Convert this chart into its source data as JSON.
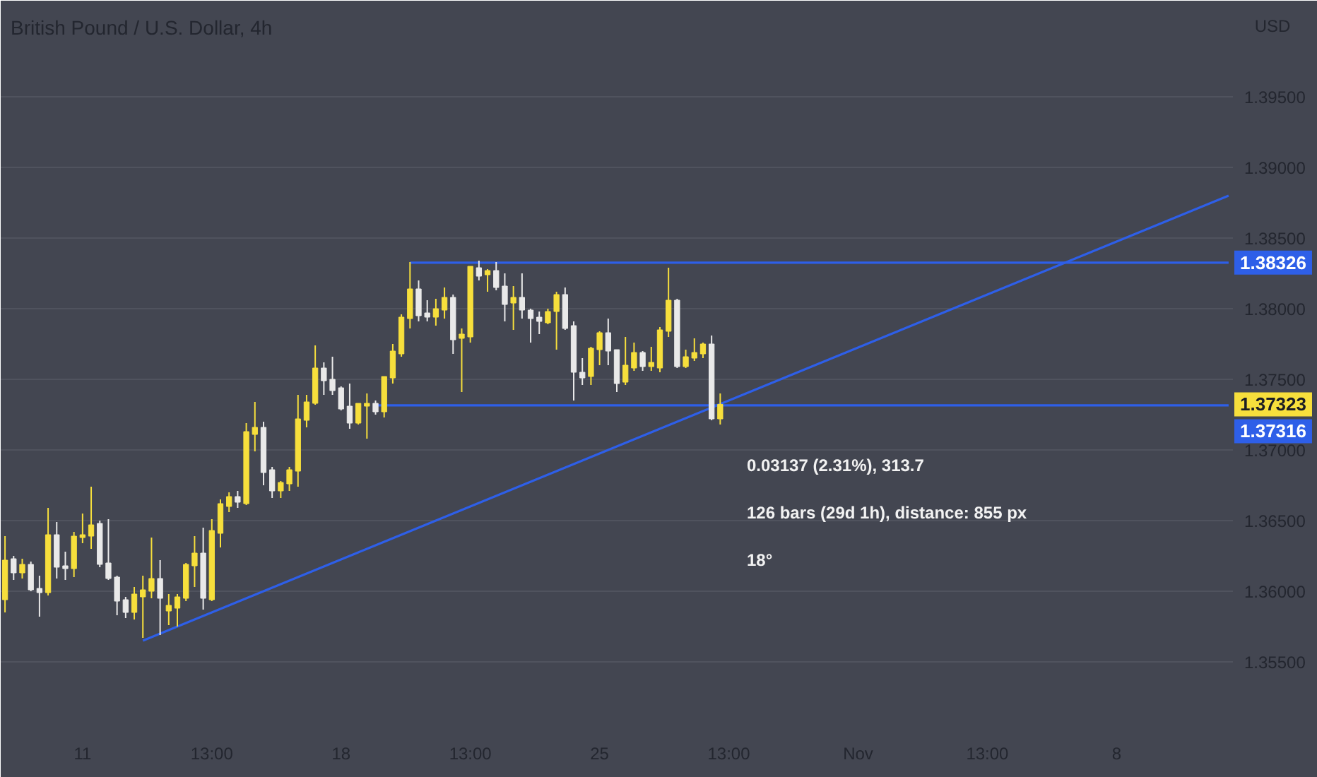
{
  "chart_data": {
    "type": "candlestick",
    "title": "British Pound / U.S. Dollar, 4h",
    "ylabel": "USD",
    "categories": [
      null,
      null,
      null,
      null,
      null,
      null,
      null,
      null,
      null,
      "11",
      null,
      null,
      null,
      null,
      null,
      null,
      null,
      null,
      null,
      null,
      null,
      null,
      null,
      null,
      "13:00",
      null,
      null,
      null,
      null,
      null,
      null,
      null,
      null,
      null,
      null,
      null,
      null,
      null,
      null,
      "18",
      null,
      null,
      null,
      null,
      null,
      null,
      null,
      null,
      null,
      null,
      null,
      null,
      null,
      null,
      "13:00",
      null,
      null,
      null,
      null,
      null,
      null,
      null,
      null,
      null,
      null,
      null,
      null,
      null,
      null,
      "25",
      null,
      null,
      null,
      null,
      null,
      null,
      null,
      null,
      null,
      null,
      null,
      null,
      null,
      null,
      "13:00",
      null,
      null,
      null,
      null,
      null,
      null,
      null,
      null,
      null,
      null,
      null,
      null,
      null,
      null,
      "Nov",
      null,
      null,
      null,
      null,
      null,
      null,
      null,
      null,
      null,
      null,
      null,
      null,
      null,
      null,
      "13:00",
      null,
      null,
      null,
      null,
      null,
      null,
      null,
      null,
      null,
      null,
      null,
      null,
      null,
      null,
      "8",
      null,
      null,
      null,
      null,
      null,
      null,
      null,
      null,
      null,
      null,
      null,
      null,
      null
    ],
    "ohlc": [
      [
        1.3594,
        1.3639,
        1.3585,
        1.3622
      ],
      [
        1.3623,
        1.3625,
        1.3608,
        1.3613
      ],
      [
        1.3613,
        1.3623,
        1.3609,
        1.3619
      ],
      [
        1.3619,
        1.3621,
        1.36,
        1.3601
      ],
      [
        1.3602,
        1.3611,
        1.3582,
        1.3599
      ],
      [
        1.3599,
        1.3659,
        1.3597,
        1.364
      ],
      [
        1.364,
        1.3649,
        1.3609,
        1.3617
      ],
      [
        1.3618,
        1.3628,
        1.3608,
        1.3616
      ],
      [
        1.3616,
        1.3642,
        1.361,
        1.3639
      ],
      [
        1.3638,
        1.3655,
        1.3634,
        1.364
      ],
      [
        1.3639,
        1.3674,
        1.363,
        1.3647
      ],
      [
        1.3648,
        1.365,
        1.3617,
        1.3619
      ],
      [
        1.362,
        1.3651,
        1.3608,
        1.3609
      ],
      [
        1.361,
        1.3611,
        1.3583,
        1.3593
      ],
      [
        1.3594,
        1.3596,
        1.3581,
        1.3585
      ],
      [
        1.3585,
        1.3603,
        1.358,
        1.3598
      ],
      [
        1.3596,
        1.3611,
        1.3567,
        1.3601
      ],
      [
        1.36,
        1.3638,
        1.3595,
        1.3609
      ],
      [
        1.3609,
        1.3622,
        1.3569,
        1.3595
      ],
      [
        1.3586,
        1.3598,
        1.3576,
        1.359
      ],
      [
        1.3588,
        1.3598,
        1.3575,
        1.3596
      ],
      [
        1.3595,
        1.362,
        1.3593,
        1.3619
      ],
      [
        1.3618,
        1.3639,
        1.3603,
        1.3627
      ],
      [
        1.3627,
        1.3645,
        1.3587,
        1.3595
      ],
      [
        1.3594,
        1.3651,
        1.3593,
        1.3643
      ],
      [
        1.3641,
        1.3665,
        1.3631,
        1.3662
      ],
      [
        1.366,
        1.367,
        1.3656,
        1.3667
      ],
      [
        1.3667,
        1.3671,
        1.3659,
        1.3663
      ],
      [
        1.3662,
        1.3719,
        1.3661,
        1.3713
      ],
      [
        1.3711,
        1.3734,
        1.3699,
        1.3716
      ],
      [
        1.3716,
        1.372,
        1.3675,
        1.3684
      ],
      [
        1.3686,
        1.3688,
        1.3666,
        1.3671
      ],
      [
        1.3671,
        1.3678,
        1.3666,
        1.3677
      ],
      [
        1.3676,
        1.3688,
        1.3671,
        1.3686
      ],
      [
        1.3685,
        1.3739,
        1.3674,
        1.3722
      ],
      [
        1.3721,
        1.3739,
        1.3716,
        1.3734
      ],
      [
        1.3733,
        1.3774,
        1.3732,
        1.3758
      ],
      [
        1.3758,
        1.3762,
        1.3739,
        1.3749
      ],
      [
        1.375,
        1.3766,
        1.3739,
        1.3742
      ],
      [
        1.3744,
        1.3745,
        1.3728,
        1.3729
      ],
      [
        1.3731,
        1.3747,
        1.3715,
        1.3719
      ],
      [
        1.3719,
        1.3733,
        1.3718,
        1.3733
      ],
      [
        1.3731,
        1.374,
        1.3708,
        1.3733
      ],
      [
        1.3733,
        1.3735,
        1.3725,
        1.3727
      ],
      [
        1.3727,
        1.3752,
        1.3723,
        1.3752
      ],
      [
        1.3751,
        1.3775,
        1.3747,
        1.377
      ],
      [
        1.3768,
        1.3796,
        1.3766,
        1.3794
      ],
      [
        1.3793,
        1.3833,
        1.3786,
        1.3814
      ],
      [
        1.3814,
        1.382,
        1.3791,
        1.3795
      ],
      [
        1.3797,
        1.3806,
        1.3791,
        1.3794
      ],
      [
        1.3794,
        1.3807,
        1.3788,
        1.38
      ],
      [
        1.3799,
        1.3815,
        1.3793,
        1.3808
      ],
      [
        1.3808,
        1.381,
        1.3768,
        1.3778
      ],
      [
        1.3779,
        1.3786,
        1.3741,
        1.3782
      ],
      [
        1.378,
        1.383,
        1.3776,
        1.383
      ],
      [
        1.3829,
        1.3834,
        1.382,
        1.3823
      ],
      [
        1.3824,
        1.3828,
        1.3812,
        1.3827
      ],
      [
        1.3827,
        1.3833,
        1.3813,
        1.3815
      ],
      [
        1.3816,
        1.3825,
        1.3791,
        1.3803
      ],
      [
        1.3804,
        1.3816,
        1.3785,
        1.3808
      ],
      [
        1.3808,
        1.3825,
        1.3793,
        1.3799
      ],
      [
        1.3799,
        1.38,
        1.3776,
        1.3793
      ],
      [
        1.3794,
        1.3798,
        1.3782,
        1.3791
      ],
      [
        1.379,
        1.38,
        1.3789,
        1.3798
      ],
      [
        1.3798,
        1.3812,
        1.3771,
        1.381
      ],
      [
        1.381,
        1.3815,
        1.3785,
        1.3786
      ],
      [
        1.3788,
        1.3791,
        1.3735,
        1.3755
      ],
      [
        1.3755,
        1.3765,
        1.3746,
        1.3751
      ],
      [
        1.3752,
        1.3773,
        1.3746,
        1.3772
      ],
      [
        1.3771,
        1.3784,
        1.376,
        1.3783
      ],
      [
        1.3783,
        1.3793,
        1.376,
        1.377
      ],
      [
        1.3771,
        1.3771,
        1.3741,
        1.3747
      ],
      [
        1.3748,
        1.378,
        1.3746,
        1.376
      ],
      [
        1.3758,
        1.3776,
        1.3756,
        1.3769
      ],
      [
        1.3769,
        1.377,
        1.3756,
        1.3759
      ],
      [
        1.3759,
        1.3773,
        1.3756,
        1.3762
      ],
      [
        1.3758,
        1.3787,
        1.3755,
        1.3785
      ],
      [
        1.3784,
        1.3829,
        1.378,
        1.3806
      ],
      [
        1.3806,
        1.3807,
        1.3758,
        1.3759
      ],
      [
        1.3759,
        1.3771,
        1.3758,
        1.3766
      ],
      [
        1.3765,
        1.3779,
        1.3763,
        1.3769
      ],
      [
        1.3768,
        1.3776,
        1.3765,
        1.3775
      ],
      [
        1.3775,
        1.3781,
        1.3721,
        1.3722
      ],
      [
        1.3722,
        1.374,
        1.3718,
        1.37323
      ],
      null,
      null,
      null,
      null,
      null,
      null,
      null,
      null,
      null,
      null,
      null,
      null,
      null,
      null,
      null,
      null,
      null,
      null,
      null,
      null,
      null,
      null,
      null,
      null,
      null,
      null,
      null,
      null,
      null,
      null,
      null,
      null,
      null,
      null,
      null,
      null,
      null,
      null,
      null,
      null,
      null,
      null,
      null,
      null,
      null,
      null,
      null,
      null,
      null,
      null,
      null,
      null,
      null,
      null,
      null,
      null,
      null,
      null,
      null
    ],
    "colors": [
      "#f7df3c",
      "#e9e9e9",
      "#f7df3c",
      "#e9e9e9",
      "#e9e9e9",
      "#f7df3c",
      "#e9e9e9",
      "#e9e9e9",
      "#f7df3c",
      "#f7df3c",
      "#f7df3c",
      "#e9e9e9",
      "#e9e9e9",
      "#e9e9e9",
      "#e9e9e9",
      "#f7df3c",
      "#f7df3c",
      "#f7df3c",
      "#e9e9e9",
      "#f7df3c",
      "#f7df3c",
      "#f7df3c",
      "#f7df3c",
      "#e9e9e9",
      "#f7df3c",
      "#f7df3c",
      "#f7df3c",
      "#e9e9e9",
      "#f7df3c",
      "#f7df3c",
      "#e9e9e9",
      "#e9e9e9",
      "#f7df3c",
      "#f7df3c",
      "#f7df3c",
      "#f7df3c",
      "#f7df3c",
      "#e9e9e9",
      "#e9e9e9",
      "#e9e9e9",
      "#e9e9e9",
      "#f7df3c",
      "#f7df3c",
      "#e9e9e9",
      "#f7df3c",
      "#f7df3c",
      "#f7df3c",
      "#f7df3c",
      "#e9e9e9",
      "#e9e9e9",
      "#f7df3c",
      "#f7df3c",
      "#e9e9e9",
      "#f7df3c",
      "#f7df3c",
      "#e9e9e9",
      "#f7df3c",
      "#e9e9e9",
      "#e9e9e9",
      "#f7df3c",
      "#e9e9e9",
      "#e9e9e9",
      "#e9e9e9",
      "#f7df3c",
      "#f7df3c",
      "#e9e9e9",
      "#e9e9e9",
      "#e9e9e9",
      "#f7df3c",
      "#f7df3c",
      "#e9e9e9",
      "#e9e9e9",
      "#f7df3c",
      "#f7df3c",
      "#e9e9e9",
      "#f7df3c",
      "#f7df3c",
      "#f7df3c",
      "#e9e9e9",
      "#f7df3c",
      "#f7df3c",
      "#f7df3c",
      "#e9e9e9",
      "#f7df3c",
      null,
      null,
      null,
      null,
      null,
      null,
      null,
      null,
      null,
      null,
      null,
      null,
      null,
      null,
      null,
      null,
      null,
      null,
      null,
      null,
      null,
      null,
      null,
      null,
      null,
      null,
      null,
      null,
      null,
      null,
      null,
      null,
      null,
      null,
      null,
      null,
      null,
      null,
      null,
      null,
      null,
      null,
      null,
      null,
      null,
      null,
      null,
      null,
      null,
      null,
      null,
      null,
      null,
      null,
      null,
      null,
      null,
      null,
      null
    ],
    "value_labels": [
      null,
      null,
      null,
      null,
      null,
      null,
      null,
      null,
      null,
      null,
      null,
      null,
      null,
      null,
      null,
      null,
      null,
      null,
      null,
      null,
      null,
      null,
      null,
      null,
      null,
      null,
      null,
      null,
      null,
      null,
      null,
      null,
      null,
      null,
      null,
      null,
      null,
      null,
      null,
      null,
      null,
      null,
      null,
      null,
      null,
      null,
      null,
      null,
      null,
      null,
      null,
      null,
      null,
      null,
      null,
      null,
      null,
      null,
      null,
      null,
      null,
      null,
      null,
      null,
      null,
      null,
      null,
      null,
      null,
      null,
      null,
      null,
      null,
      null,
      null,
      null,
      null,
      null,
      null,
      null,
      null,
      null,
      null,
      "1.37323",
      null,
      null,
      null,
      null,
      null,
      null,
      null,
      null,
      null,
      null,
      null,
      null,
      null,
      null,
      null,
      null,
      null,
      null,
      null,
      null,
      null,
      null,
      null,
      null,
      null,
      null,
      null,
      null,
      null,
      null,
      null,
      null,
      null,
      null,
      null,
      null,
      null,
      null,
      null,
      null,
      null,
      null,
      null,
      null,
      null,
      null,
      null,
      null,
      null,
      null,
      null,
      null,
      null,
      null,
      null,
      null,
      null,
      null,
      null
    ],
    "series": [
      {
        "type": "line",
        "color": "#2e5fe8",
        "values": [
          null,
          null,
          null,
          null,
          null,
          null,
          null,
          null,
          null,
          null,
          null,
          null,
          null,
          null,
          null,
          null,
          1.3565,
          1.35675,
          1.357,
          1.35725,
          1.3575,
          1.35775,
          1.358,
          1.35825,
          1.3585,
          1.35875,
          1.359,
          1.35925,
          1.3595,
          1.35975,
          1.36,
          1.36025,
          1.3605,
          1.36075,
          1.361,
          1.36125,
          1.3615,
          1.36175,
          1.362,
          1.36225,
          1.3625,
          1.36275,
          1.363,
          1.36325,
          1.3635,
          1.36375,
          1.364,
          1.36425,
          1.3645,
          1.36475,
          1.365,
          1.36525,
          1.3655,
          1.36575,
          1.366,
          1.36625,
          1.3665,
          1.36675,
          1.367,
          1.36725,
          1.3675,
          1.36775,
          1.368,
          1.36825,
          1.3685,
          1.36875,
          1.369,
          1.36925,
          1.3695,
          1.36975,
          1.37,
          1.37025,
          1.3705,
          1.37075,
          1.371,
          1.37125,
          1.3715,
          1.37175,
          1.372,
          1.37225,
          1.3725,
          1.37275,
          1.373,
          1.37325,
          1.3735,
          1.37375,
          1.374,
          1.37425,
          1.3745,
          1.37475,
          1.375,
          1.37525,
          1.3755,
          1.37575,
          1.376,
          1.37625,
          1.3765,
          1.37675,
          1.377,
          1.37725,
          1.3775,
          1.37775,
          1.378,
          1.37825,
          1.3785,
          1.37875,
          1.379,
          1.37925,
          1.3795,
          1.37975,
          1.38,
          1.38025,
          1.3805,
          1.38075,
          1.381,
          1.38125,
          1.3815,
          1.38175,
          1.382,
          1.38225,
          1.3825,
          1.38275,
          1.383,
          1.38325,
          1.3835,
          1.38375,
          1.384,
          1.38425,
          1.3845,
          1.38475,
          1.385,
          1.38525,
          1.3855,
          1.38575,
          1.386,
          1.38625,
          1.3865,
          1.38675,
          1.387,
          1.38725,
          1.3875,
          1.38775,
          1.388
        ]
      },
      {
        "type": "line",
        "color": "#2e5fe8",
        "values": [
          null,
          null,
          null,
          null,
          null,
          null,
          null,
          null,
          null,
          null,
          null,
          null,
          null,
          null,
          null,
          null,
          null,
          null,
          null,
          null,
          null,
          null,
          null,
          null,
          null,
          null,
          null,
          null,
          null,
          null,
          null,
          null,
          null,
          null,
          null,
          null,
          null,
          null,
          null,
          null,
          null,
          null,
          null,
          null,
          null,
          null,
          null,
          1.38326,
          1.38326,
          1.38326,
          1.38326,
          1.38326,
          1.38326,
          1.38326,
          1.38326,
          1.38326,
          1.38326,
          1.38326,
          1.38326,
          1.38326,
          1.38326,
          1.38326,
          1.38326,
          1.38326,
          1.38326,
          1.38326,
          1.38326,
          1.38326,
          1.38326,
          1.38326,
          1.38326,
          1.38326,
          1.38326,
          1.38326,
          1.38326,
          1.38326,
          1.38326,
          1.38326,
          1.38326,
          1.38326,
          1.38326,
          1.38326,
          1.38326,
          1.38326,
          1.38326,
          1.38326,
          1.38326,
          1.38326,
          1.38326,
          1.38326,
          1.38326,
          1.38326,
          1.38326,
          1.38326,
          1.38326,
          1.38326,
          1.38326,
          1.38326,
          1.38326,
          1.38326,
          1.38326,
          1.38326,
          1.38326,
          1.38326,
          1.38326,
          1.38326,
          1.38326,
          1.38326,
          1.38326,
          1.38326,
          1.38326,
          1.38326,
          1.38326,
          1.38326,
          1.38326,
          1.38326,
          1.38326,
          1.38326,
          1.38326,
          1.38326,
          1.38326,
          1.38326,
          1.38326,
          1.38326,
          1.38326,
          1.38326,
          1.38326,
          1.38326,
          1.38326,
          1.38326,
          1.38326,
          1.38326,
          1.38326,
          1.38326,
          1.38326,
          1.38326,
          1.38326,
          1.38326,
          1.38326,
          1.38326,
          1.38326,
          1.38326,
          1.38326
        ],
        "value_labels": [
          null,
          null,
          null,
          null,
          null,
          null,
          null,
          null,
          null,
          null,
          null,
          null,
          null,
          null,
          null,
          null,
          null,
          null,
          null,
          null,
          null,
          null,
          null,
          null,
          null,
          null,
          null,
          null,
          null,
          null,
          null,
          null,
          null,
          null,
          null,
          null,
          null,
          null,
          null,
          null,
          null,
          null,
          null,
          null,
          null,
          null,
          null,
          null,
          null,
          null,
          null,
          null,
          null,
          null,
          null,
          null,
          null,
          null,
          null,
          null,
          null,
          null,
          null,
          null,
          null,
          null,
          null,
          null,
          null,
          null,
          null,
          null,
          null,
          null,
          null,
          null,
          null,
          null,
          null,
          null,
          null,
          null,
          null,
          null,
          null,
          null,
          null,
          null,
          null,
          null,
          null,
          null,
          null,
          null,
          null,
          null,
          null,
          null,
          null,
          null,
          null,
          null,
          null,
          null,
          null,
          null,
          null,
          null,
          null,
          null,
          null,
          null,
          null,
          null,
          null,
          null,
          null,
          null,
          null,
          null,
          null,
          null,
          null,
          null,
          null,
          null,
          null,
          null,
          null,
          null,
          null,
          null,
          null,
          null,
          null,
          null,
          null,
          null,
          null,
          null,
          null,
          null,
          "1.38326"
        ]
      },
      {
        "type": "line",
        "color": "#2e5fe8",
        "values": [
          null,
          null,
          null,
          null,
          null,
          null,
          null,
          null,
          null,
          null,
          null,
          null,
          null,
          null,
          null,
          null,
          null,
          null,
          null,
          null,
          null,
          null,
          null,
          null,
          null,
          null,
          null,
          null,
          null,
          null,
          null,
          null,
          null,
          null,
          null,
          null,
          null,
          null,
          null,
          null,
          null,
          null,
          null,
          1.37316,
          1.37316,
          1.37316,
          1.37316,
          1.37316,
          1.37316,
          1.37316,
          1.37316,
          1.37316,
          1.37316,
          1.37316,
          1.37316,
          1.37316,
          1.37316,
          1.37316,
          1.37316,
          1.37316,
          1.37316,
          1.37316,
          1.37316,
          1.37316,
          1.37316,
          1.37316,
          1.37316,
          1.37316,
          1.37316,
          1.37316,
          1.37316,
          1.37316,
          1.37316,
          1.37316,
          1.37316,
          1.37316,
          1.37316,
          1.37316,
          1.37316,
          1.37316,
          1.37316,
          1.37316,
          1.37316,
          1.37316,
          1.37316,
          1.37316,
          1.37316,
          1.37316,
          1.37316,
          1.37316,
          1.37316,
          1.37316,
          1.37316,
          1.37316,
          1.37316,
          1.37316,
          1.37316,
          1.37316,
          1.37316,
          1.37316,
          1.37316,
          1.37316,
          1.37316,
          1.37316,
          1.37316,
          1.37316,
          1.37316,
          1.37316,
          1.37316,
          1.37316,
          1.37316,
          1.37316,
          1.37316,
          1.37316,
          1.37316,
          1.37316,
          1.37316,
          1.37316,
          1.37316,
          1.37316,
          1.37316,
          1.37316,
          1.37316,
          1.37316,
          1.37316,
          1.37316,
          1.37316,
          1.37316,
          1.37316,
          1.37316,
          1.37316,
          1.37316,
          1.37316,
          1.37316,
          1.37316,
          1.37316,
          1.37316,
          1.37316,
          1.37316,
          1.37316,
          1.37316,
          1.37316,
          1.37316
        ],
        "value_labels": [
          null,
          null,
          null,
          null,
          null,
          null,
          null,
          null,
          null,
          null,
          null,
          null,
          null,
          null,
          null,
          null,
          null,
          null,
          null,
          null,
          null,
          null,
          null,
          null,
          null,
          null,
          null,
          null,
          null,
          null,
          null,
          null,
          null,
          null,
          null,
          null,
          null,
          null,
          null,
          null,
          null,
          null,
          null,
          null,
          null,
          null,
          null,
          null,
          null,
          null,
          null,
          null,
          null,
          null,
          null,
          null,
          null,
          null,
          null,
          null,
          null,
          null,
          null,
          null,
          null,
          null,
          null,
          null,
          null,
          null,
          null,
          null,
          null,
          null,
          null,
          null,
          null,
          null,
          null,
          null,
          null,
          null,
          null,
          null,
          null,
          null,
          null,
          null,
          null,
          null,
          null,
          null,
          null,
          null,
          null,
          null,
          null,
          null,
          null,
          null,
          null,
          null,
          null,
          null,
          null,
          null,
          null,
          null,
          null,
          null,
          null,
          null,
          null,
          null,
          null,
          null,
          null,
          null,
          null,
          null,
          null,
          null,
          null,
          null,
          null,
          null,
          null,
          null,
          null,
          null,
          null,
          null,
          null,
          null,
          null,
          null,
          null,
          null,
          null,
          null,
          null,
          null,
          "1.37316"
        ]
      }
    ],
    "ylim": [
      1.3498,
      1.4018
    ],
    "yticks": [
      {
        "value": 1.355,
        "label": "1.35500"
      },
      {
        "value": 1.36,
        "label": "1.36000"
      },
      {
        "value": 1.365,
        "label": "1.36500"
      },
      {
        "value": 1.37,
        "label": "1.37000"
      },
      {
        "value": 1.375,
        "label": "1.37500"
      },
      {
        "value": 1.38,
        "label": "1.38000"
      },
      {
        "value": 1.385,
        "label": "1.38500"
      },
      {
        "value": 1.39,
        "label": "1.39000"
      },
      {
        "value": 1.395,
        "label": "1.39500"
      }
    ],
    "grid": "y",
    "annotations": [
      "0.03137 (2.31%), 313.7",
      "126 bars (29d 1h), distance: 855 px",
      "18°"
    ]
  }
}
